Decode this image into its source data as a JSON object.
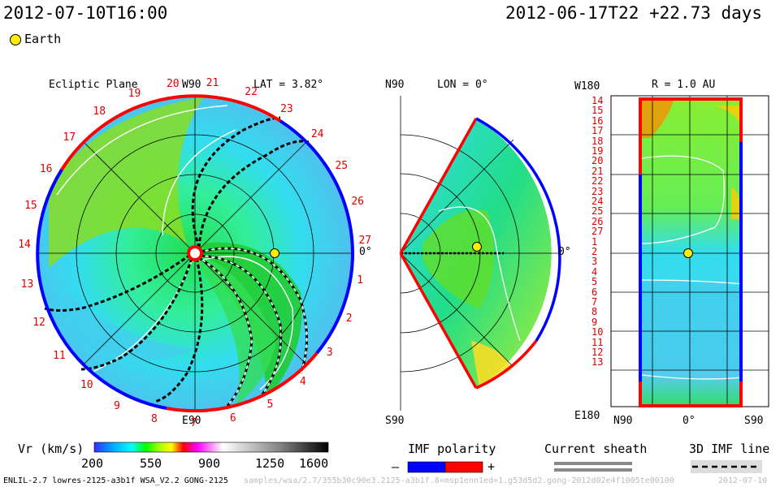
{
  "header": {
    "run_time": "2012-07-10T16:00",
    "ref_time": "2012-06-17T22 +22.73 days",
    "earth_label": "Earth"
  },
  "ecliptic": {
    "title": "Ecliptic Plane",
    "top_label": "W90",
    "bottom_label": "E90",
    "right_label": "0°",
    "lat_label": "LAT = 3.82°",
    "rotations": [
      "1",
      "2",
      "3",
      "4",
      "5",
      "6",
      "7",
      "8",
      "9",
      "10",
      "11",
      "12",
      "13",
      "14",
      "15",
      "16",
      "17",
      "18",
      "19",
      "20",
      "21",
      "22",
      "23",
      "24",
      "25",
      "26",
      "27"
    ]
  },
  "meridional": {
    "top_label": "N90",
    "bottom_label": "S90",
    "right_label": "0°",
    "lon_label": "LON = 0°"
  },
  "radial": {
    "title": "R = 1.0 AU",
    "top_left_label": "W180",
    "bottom_left_label": "E180",
    "x_labels": [
      "N90",
      "0°",
      "S90"
    ],
    "y_labels": [
      "14",
      "15",
      "16",
      "17",
      "18",
      "19",
      "20",
      "21",
      "22",
      "23",
      "24",
      "25",
      "26",
      "27",
      "1",
      "2",
      "3",
      "4",
      "5",
      "6",
      "7",
      "8",
      "9",
      "10",
      "11",
      "12",
      "13"
    ]
  },
  "colorbar": {
    "label": "Vr (km/s)",
    "ticks": [
      "200",
      "550",
      "900",
      "1250",
      "1600"
    ],
    "colors": [
      "#3030ff",
      "#00aaff",
      "#00ffff",
      "#00ff00",
      "#aaff00",
      "#ffff00",
      "#ff0000",
      "#ff00ff",
      "#ffffff",
      "#808080",
      "#000000"
    ]
  },
  "legend": {
    "imf_title": "IMF polarity",
    "imf_minus": "–",
    "imf_plus": "+",
    "sheath_title": "Current sheath",
    "line_title": "3D IMF line",
    "imf_colors": [
      "#0000ff",
      "#ff0000"
    ]
  },
  "footer": {
    "model": "ENLIL-2.7 lowres-2125-a3b1f WSA_V2.2 GONG-2125",
    "path": "samples/wsa/2.7/355b30c90e3.2125-a3b1f.8=msp1enn1ed=1.g53d5d2.gong-2012d02e4f1005te00100",
    "date": "2012-07-10"
  }
}
